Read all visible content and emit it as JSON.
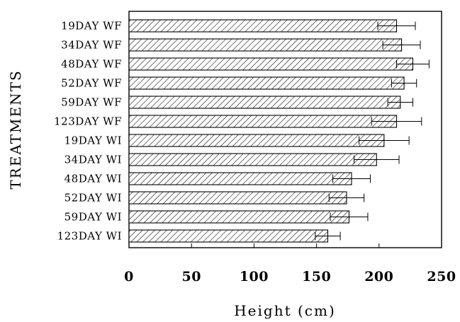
{
  "chart_data": {
    "type": "bar",
    "orientation": "horizontal",
    "categories": [
      "19DAY WF",
      "34DAY WF",
      "48DAY WF",
      "52DAY WF",
      "59DAY WF",
      "123DAY WF",
      "19DAY WI",
      "34DAY WI",
      "48DAY WI",
      "52DAY WI",
      "59DAY WI",
      "123DAY WI"
    ],
    "values": [
      214,
      218,
      227,
      220,
      217,
      214,
      204,
      198,
      178,
      174,
      176,
      159
    ],
    "errors": [
      15,
      15,
      13,
      10,
      10,
      20,
      20,
      18,
      15,
      14,
      15,
      10
    ],
    "title": "",
    "xlabel": "Height (cm)",
    "ylabel": "TREATMENTS",
    "xlim": [
      0,
      250
    ],
    "xticks": [
      0,
      50,
      100,
      150,
      200,
      250
    ],
    "xtick_labels": [
      "0",
      "50",
      "100",
      "150",
      "200",
      "250"
    ],
    "grid": false,
    "bar_fill": "diagonal-hatch",
    "bar_color": "#000000"
  }
}
